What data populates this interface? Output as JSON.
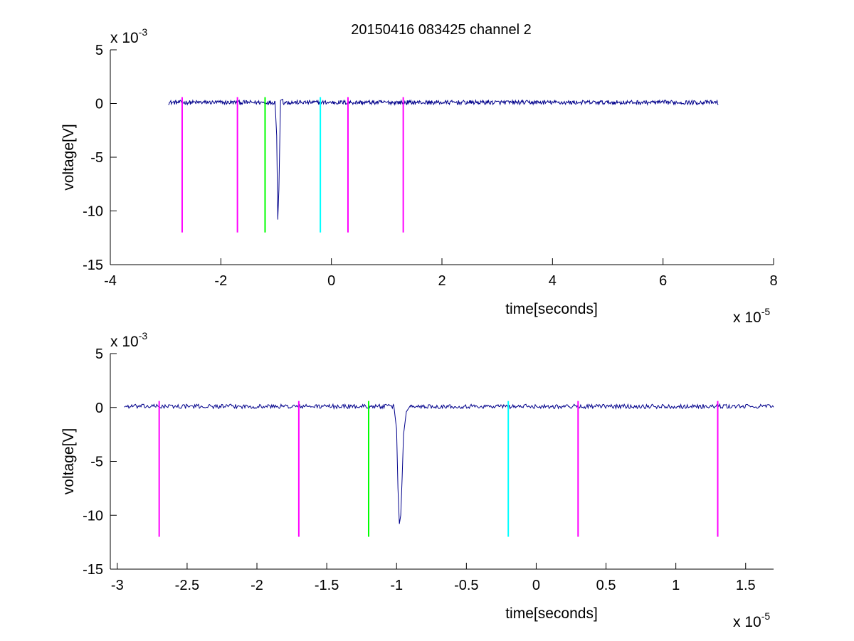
{
  "figure_title": "20150416 083425 channel 2",
  "colors": {
    "signal": "#00008b",
    "magenta_marker": "#ff00ff",
    "green_marker": "#00ff00",
    "cyan_marker": "#00ffff",
    "axis": "#000000",
    "background": "#ffffff"
  },
  "chart_data": [
    {
      "type": "line",
      "title": "20150416 083425 channel 2",
      "xlabel": "time[seconds]",
      "ylabel": "voltage[V]",
      "x_exponent_label": "x 10",
      "x_exponent": "-5",
      "y_exponent_label": "x 10",
      "y_exponent": "-3",
      "xlim": [
        -4,
        8
      ],
      "ylim": [
        -15,
        5
      ],
      "x_ticks": [
        -4,
        -2,
        0,
        2,
        4,
        6,
        8
      ],
      "x_tick_labels": [
        "-4",
        "-2",
        "0",
        "2",
        "4",
        "6",
        "8"
      ],
      "y_ticks": [
        5,
        0,
        -5,
        -10,
        -15
      ],
      "y_tick_labels": [
        "5",
        "0",
        "-5",
        "-10",
        "-15"
      ],
      "grid": false,
      "signal": {
        "x_range": [
          -2.95,
          7.0
        ],
        "baseline": 0.1,
        "noise_amplitude": 0.2,
        "pulse": [
          [
            -1.02,
            0.2
          ],
          [
            -0.99,
            -3.0
          ],
          [
            -0.97,
            -10.8
          ],
          [
            -0.95,
            -8.0
          ],
          [
            -0.92,
            0.3
          ],
          [
            -0.88,
            0.4
          ]
        ]
      },
      "markers": [
        {
          "x": -2.7,
          "color": "magenta",
          "ymin": -12,
          "ymax": 0.6
        },
        {
          "x": -1.7,
          "color": "magenta",
          "ymin": -12,
          "ymax": 0.6
        },
        {
          "x": -1.2,
          "color": "green",
          "ymin": -12,
          "ymax": 0.6
        },
        {
          "x": -0.2,
          "color": "cyan",
          "ymin": -12,
          "ymax": 0.6
        },
        {
          "x": 0.3,
          "color": "magenta",
          "ymin": -12,
          "ymax": 0.6
        },
        {
          "x": 1.3,
          "color": "magenta",
          "ymin": -12,
          "ymax": 0.6
        }
      ]
    },
    {
      "type": "line",
      "title": "",
      "xlabel": "time[seconds]",
      "ylabel": "voltage[V]",
      "x_exponent_label": "x 10",
      "x_exponent": "-5",
      "y_exponent_label": "x 10",
      "y_exponent": "-3",
      "xlim": [
        -3.05,
        1.7
      ],
      "ylim": [
        -15,
        5
      ],
      "x_ticks": [
        -3,
        -2.5,
        -2,
        -1.5,
        -1,
        -0.5,
        0,
        0.5,
        1,
        1.5
      ],
      "x_tick_labels": [
        "-3",
        "-2.5",
        "-2",
        "-1.5",
        "-1",
        "-0.5",
        "0",
        "0.5",
        "1",
        "1.5"
      ],
      "y_ticks": [
        5,
        0,
        -5,
        -10,
        -15
      ],
      "y_tick_labels": [
        "5",
        "0",
        "-5",
        "-10",
        "-15"
      ],
      "grid": false,
      "signal": {
        "x_range": [
          -2.95,
          1.7
        ],
        "baseline": 0.1,
        "noise_amplitude": 0.2,
        "pulse": [
          [
            -1.02,
            0.2
          ],
          [
            -1.0,
            -2.0
          ],
          [
            -0.99,
            -7.5
          ],
          [
            -0.98,
            -10.8
          ],
          [
            -0.97,
            -10.0
          ],
          [
            -0.96,
            -6.5
          ],
          [
            -0.95,
            -2.5
          ],
          [
            -0.93,
            -0.4
          ],
          [
            -0.9,
            0.2
          ]
        ]
      },
      "markers": [
        {
          "x": -2.7,
          "color": "magenta",
          "ymin": -12,
          "ymax": 0.6
        },
        {
          "x": -1.7,
          "color": "magenta",
          "ymin": -12,
          "ymax": 0.6
        },
        {
          "x": -1.2,
          "color": "green",
          "ymin": -12,
          "ymax": 0.6
        },
        {
          "x": -0.2,
          "color": "cyan",
          "ymin": -12,
          "ymax": 0.6
        },
        {
          "x": 0.3,
          "color": "magenta",
          "ymin": -12,
          "ymax": 0.6
        },
        {
          "x": 1.3,
          "color": "magenta",
          "ymin": -12,
          "ymax": 0.6
        }
      ]
    }
  ]
}
